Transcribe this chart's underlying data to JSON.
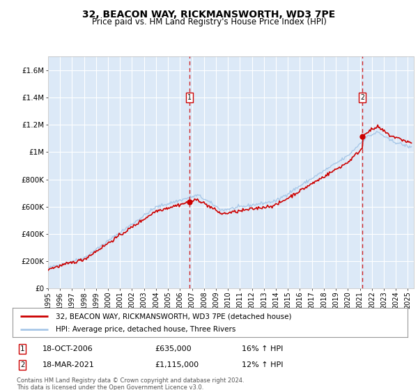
{
  "title": "32, BEACON WAY, RICKMANSWORTH, WD3 7PE",
  "subtitle": "Price paid vs. HM Land Registry's House Price Index (HPI)",
  "background_color": "#dce9f7",
  "plot_bg_color": "#dce9f7",
  "hpi_color": "#a8c8e8",
  "price_color": "#cc0000",
  "dashed_color": "#cc0000",
  "ylim": [
    0,
    1700000
  ],
  "yticks": [
    0,
    200000,
    400000,
    600000,
    800000,
    1000000,
    1200000,
    1400000,
    1600000
  ],
  "ytick_labels": [
    "£0",
    "£200K",
    "£400K",
    "£600K",
    "£800K",
    "£1M",
    "£1.2M",
    "£1.4M",
    "£1.6M"
  ],
  "xlim_start": 1995.0,
  "xlim_end": 2025.5,
  "sale1_x": 2006.8,
  "sale1_y": 635000,
  "sale2_x": 2021.2,
  "sale2_y": 1115000,
  "legend_entries": [
    "32, BEACON WAY, RICKMANSWORTH, WD3 7PE (detached house)",
    "HPI: Average price, detached house, Three Rivers"
  ],
  "annotation1_label": "1",
  "annotation1_date": "18-OCT-2006",
  "annotation1_price": "£635,000",
  "annotation1_hpi": "16% ↑ HPI",
  "annotation2_label": "2",
  "annotation2_date": "18-MAR-2021",
  "annotation2_price": "£1,115,000",
  "annotation2_hpi": "12% ↑ HPI",
  "footer": "Contains HM Land Registry data © Crown copyright and database right 2024.\nThis data is licensed under the Open Government Licence v3.0."
}
